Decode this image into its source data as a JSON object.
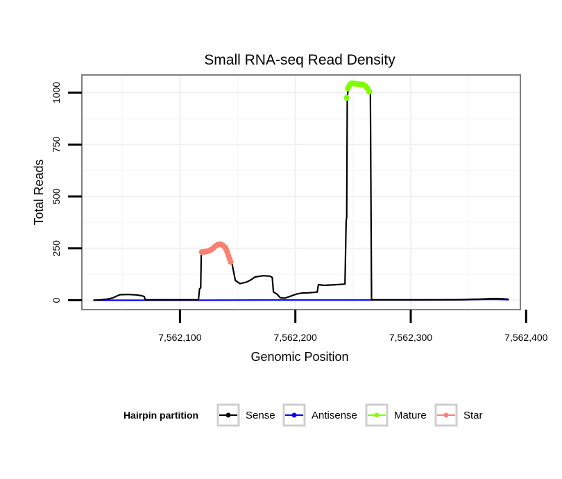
{
  "chart_data": {
    "type": "line",
    "title": "Small RNA-seq Read Density",
    "xlabel": "Genomic Position",
    "ylabel": "Total Reads",
    "xlim": [
      7562015,
      7562395
    ],
    "ylim": [
      -45,
      1085
    ],
    "x_ticks": [
      7562100,
      7562200,
      7562300,
      7562400
    ],
    "x_tick_labels": [
      "7,562,100",
      "7,562,200",
      "7,562,300",
      "7,562,400"
    ],
    "y_ticks": [
      0,
      250,
      500,
      750,
      1000
    ],
    "y_tick_labels": [
      "0",
      "250",
      "500",
      "750",
      "1000"
    ],
    "grid": true,
    "legend": {
      "title": "Hairpin partition",
      "position": "bottom",
      "entries": [
        {
          "name": "Sense",
          "color": "#000000"
        },
        {
          "name": "Antisense",
          "color": "#0000ff"
        },
        {
          "name": "Mature",
          "color": "#7fff00"
        },
        {
          "name": "Star",
          "color": "#fa8072"
        }
      ]
    },
    "series": [
      {
        "name": "Sense",
        "color": "#000000",
        "style": "line",
        "x": [
          7562025,
          7562032,
          7562037,
          7562042,
          7562045,
          7562048,
          7562055,
          7562062,
          7562067,
          7562069,
          7562070,
          7562100,
          7562116,
          7562117,
          7562118,
          7562118.5,
          7562119,
          7562124,
          7562129,
          7562134,
          7562137,
          7562140,
          7562143,
          7562144,
          7562145,
          7562148,
          7562152,
          7562155,
          7562158,
          7562162,
          7562165,
          7562172,
          7562178,
          7562180,
          7562181,
          7562184,
          7562187,
          7562191,
          7562196,
          7562201,
          7562206,
          7562211,
          7562216,
          7562219,
          7562220,
          7562225,
          7562235,
          7562243,
          7562244,
          7562244.5,
          7562245,
          7562246,
          7562248,
          7562252,
          7562256,
          7562260,
          7562264,
          7562265,
          7562266,
          7562340,
          7562360,
          7562370,
          7562380,
          7562385
        ],
        "y": [
          0,
          2,
          5,
          12,
          20,
          27,
          28,
          26,
          22,
          18,
          2,
          2,
          2,
          55,
          60,
          230,
          235,
          240,
          250,
          265,
          258,
          240,
          210,
          185,
          180,
          95,
          80,
          84,
          88,
          100,
          112,
          118,
          116,
          110,
          40,
          30,
          12,
          10,
          20,
          30,
          35,
          36,
          38,
          40,
          75,
          72,
          75,
          78,
          380,
          400,
          980,
          1025,
          1040,
          1045,
          1042,
          1038,
          1020,
          1005,
          2,
          2,
          5,
          8,
          7,
          4
        ]
      },
      {
        "name": "Antisense",
        "color": "#0000ff",
        "style": "line",
        "x": [
          7562025,
          7562100,
          7562170,
          7562200,
          7562300,
          7562340,
          7562360,
          7562372,
          7562385
        ],
        "y": [
          0,
          0,
          1,
          1,
          1,
          2,
          4,
          5,
          3
        ]
      },
      {
        "name": "Mature",
        "color": "#7fff00",
        "style": "points",
        "x": [
          7562244.5,
          7562245.5,
          7562246.5,
          7562247.5,
          7562249,
          7562251,
          7562253,
          7562255,
          7562257,
          7562259,
          7562261,
          7562262.5,
          7562264
        ],
        "y": [
          975,
          1020,
          1030,
          1040,
          1045,
          1044,
          1042,
          1041,
          1040,
          1038,
          1030,
          1020,
          1005
        ]
      },
      {
        "name": "Star",
        "color": "#fa8072",
        "style": "points",
        "x": [
          7562119,
          7562121,
          7562123,
          7562125,
          7562127,
          7562129,
          7562131,
          7562133,
          7562135,
          7562137,
          7562139,
          7562140,
          7562141,
          7562142,
          7562143,
          7562144
        ],
        "y": [
          232,
          233,
          235,
          238,
          244,
          252,
          262,
          268,
          270,
          265,
          255,
          245,
          232,
          215,
          200,
          185
        ]
      }
    ]
  }
}
